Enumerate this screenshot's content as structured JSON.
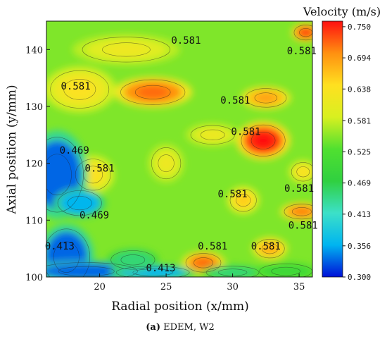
{
  "chart_data": {
    "type": "heatmap",
    "title": "",
    "xlabel": "Radial position (x/mm)",
    "ylabel": "Axial position (y/mm)",
    "xlim": [
      16,
      36
    ],
    "ylim": [
      100,
      145
    ],
    "xticks": [
      "20",
      "25",
      "30",
      "35"
    ],
    "yticks": [
      "100",
      "110",
      "120",
      "130",
      "140"
    ],
    "colorbar": {
      "title": "Velocity (m/s)",
      "range": [
        0.3,
        0.76
      ],
      "ticks": [
        "0.750",
        "0.694",
        "0.638",
        "0.581",
        "0.525",
        "0.469",
        "0.413",
        "0.356",
        "0.300"
      ],
      "colors": [
        "#0010d8",
        "#00b4f0",
        "#3ce0c8",
        "#30d040",
        "#50e030",
        "#d8f020",
        "#ffe020",
        "#ff9010",
        "#ff1010"
      ]
    },
    "background_value": 0.55,
    "regions": [
      {
        "x": 24,
        "y": 132.5,
        "rx": 2.2,
        "ry": 2.0,
        "value": 0.7
      },
      {
        "x": 32.3,
        "y": 124,
        "rx": 1.5,
        "ry": 2.5,
        "value": 0.74
      },
      {
        "x": 32.5,
        "y": 131.5,
        "rx": 1.4,
        "ry": 1.5,
        "value": 0.67
      },
      {
        "x": 27.8,
        "y": 102.5,
        "rx": 1.2,
        "ry": 1.5,
        "value": 0.7
      },
      {
        "x": 32.8,
        "y": 105,
        "rx": 1.0,
        "ry": 1.5,
        "value": 0.66
      },
      {
        "x": 35.2,
        "y": 111.5,
        "rx": 1.2,
        "ry": 1.2,
        "value": 0.69
      },
      {
        "x": 35.5,
        "y": 143,
        "rx": 0.8,
        "ry": 1.2,
        "value": 0.72
      },
      {
        "x": 30.8,
        "y": 113.5,
        "rx": 0.9,
        "ry": 1.8,
        "value": 0.64
      },
      {
        "x": 18.5,
        "y": 133,
        "rx": 2.0,
        "ry": 3.0,
        "value": 0.62
      },
      {
        "x": 19.5,
        "y": 118,
        "rx": 1.2,
        "ry": 2.5,
        "value": 0.62
      },
      {
        "x": 35.3,
        "y": 118.5,
        "rx": 0.8,
        "ry": 1.5,
        "value": 0.62
      },
      {
        "x": 25,
        "y": 120,
        "rx": 1.0,
        "ry": 2.5,
        "value": 0.6
      },
      {
        "x": 28.5,
        "y": 125,
        "rx": 1.5,
        "ry": 1.5,
        "value": 0.6
      },
      {
        "x": 22,
        "y": 140,
        "rx": 3.0,
        "ry": 2.0,
        "value": 0.6
      },
      {
        "x": 17.5,
        "y": 103.5,
        "rx": 1.6,
        "ry": 4.5,
        "value": 0.33
      },
      {
        "x": 16.8,
        "y": 118,
        "rx": 1.8,
        "ry": 6.0,
        "value": 0.33
      },
      {
        "x": 19,
        "y": 101,
        "rx": 3.5,
        "ry": 1.4,
        "value": 0.33
      },
      {
        "x": 18.5,
        "y": 113,
        "rx": 1.5,
        "ry": 2.0,
        "value": 0.36
      },
      {
        "x": 24,
        "y": 100.8,
        "rx": 2.5,
        "ry": 1.0,
        "value": 0.36
      },
      {
        "x": 30,
        "y": 100.8,
        "rx": 1.8,
        "ry": 1.0,
        "value": 0.45
      },
      {
        "x": 34,
        "y": 101,
        "rx": 1.8,
        "ry": 1.2,
        "value": 0.5
      },
      {
        "x": 22.5,
        "y": 103,
        "rx": 1.5,
        "ry": 1.5,
        "value": 0.45
      }
    ],
    "annotations": [
      {
        "text": "0.581",
        "x": 26.5,
        "y": 141.5
      },
      {
        "text": "0.581",
        "x": 35.2,
        "y": 139.7
      },
      {
        "text": "0.581",
        "x": 18.2,
        "y": 133.5
      },
      {
        "text": "0.581",
        "x": 30.2,
        "y": 131.0
      },
      {
        "text": "0.581",
        "x": 31.0,
        "y": 125.5
      },
      {
        "text": "0.469",
        "x": 18.1,
        "y": 122.2
      },
      {
        "text": "0.581",
        "x": 20.0,
        "y": 119.0
      },
      {
        "text": "0.581",
        "x": 30.0,
        "y": 114.5
      },
      {
        "text": "0.581",
        "x": 35.0,
        "y": 115.5
      },
      {
        "text": "0.469",
        "x": 19.6,
        "y": 110.8
      },
      {
        "text": "0.581",
        "x": 35.3,
        "y": 109.0
      },
      {
        "text": "0.413",
        "x": 17.0,
        "y": 105.3
      },
      {
        "text": "0.581",
        "x": 28.5,
        "y": 105.3
      },
      {
        "text": "0.581",
        "x": 32.5,
        "y": 105.3
      },
      {
        "text": "0.413",
        "x": 24.6,
        "y": 101.5
      }
    ],
    "caption": {
      "bold": "(a)",
      "text": " EDEM, W2"
    }
  }
}
